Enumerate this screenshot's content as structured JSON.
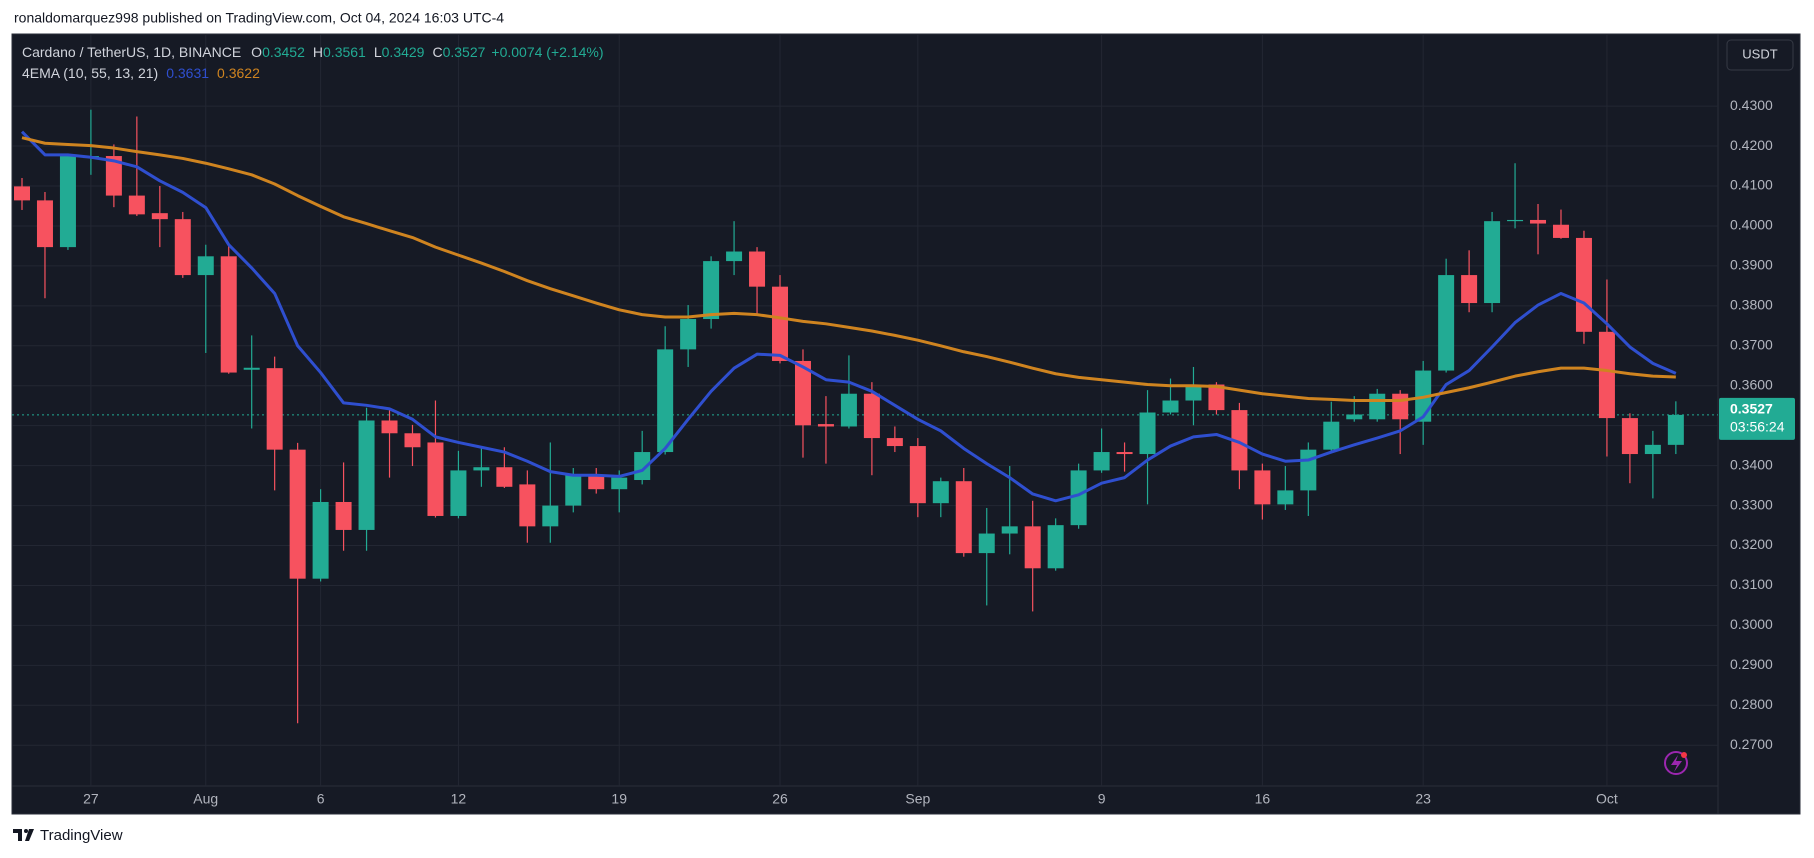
{
  "publisher": "ronaldomarquez998 published on TradingView.com, Oct 04, 2024 16:03 UTC-4",
  "footer": "TradingView",
  "chart_data": {
    "type": "candlestick",
    "symbol": "Cardano / TetherUS, 1D, BINANCE",
    "ohlc_keys": [
      "O",
      "H",
      "L",
      "C"
    ],
    "change": "+0.0074 (+2.14%)",
    "indicator": "4EMA (10, 55, 13, 21)",
    "currency": "USDT",
    "countdown": "03:56:24",
    "up_color": "#22ab94",
    "down_color": "#f7525f",
    "grid": true,
    "x": [
      "07-24",
      "07-25",
      "07-26",
      "07-27",
      "07-28",
      "07-29",
      "07-30",
      "07-31",
      "08-01",
      "08-02",
      "08-03",
      "08-04",
      "08-05",
      "08-06",
      "08-07",
      "08-08",
      "08-09",
      "08-10",
      "08-11",
      "08-12",
      "08-13",
      "08-14",
      "08-15",
      "08-16",
      "08-17",
      "08-18",
      "08-19",
      "08-20",
      "08-21",
      "08-22",
      "08-23",
      "08-24",
      "08-25",
      "08-26",
      "08-27",
      "08-28",
      "08-29",
      "08-30",
      "08-31",
      "09-01",
      "09-02",
      "09-03",
      "09-04",
      "09-05",
      "09-06",
      "09-07",
      "09-08",
      "09-09",
      "09-10",
      "09-11",
      "09-12",
      "09-13",
      "09-14",
      "09-15",
      "09-16",
      "09-17",
      "09-18",
      "09-19",
      "09-20",
      "09-21",
      "09-22",
      "09-23",
      "09-24",
      "09-25",
      "09-26",
      "09-27",
      "09-28",
      "09-29",
      "09-30",
      "10-01",
      "10-02",
      "10-03",
      "10-04"
    ],
    "open": [
      0.4099,
      0.4064,
      0.3947,
      0.417,
      0.4175,
      0.4076,
      0.4032,
      0.4017,
      0.3877,
      0.3924,
      0.364,
      0.3644,
      0.344,
      0.3117,
      0.3309,
      0.3239,
      0.3513,
      0.3481,
      0.3458,
      0.3274,
      0.3388,
      0.3396,
      0.3353,
      0.3248,
      0.33,
      0.3376,
      0.3341,
      0.3364,
      0.3434,
      0.3691,
      0.3767,
      0.3912,
      0.3936,
      0.3848,
      0.3662,
      0.3504,
      0.3498,
      0.358,
      0.3469,
      0.3449,
      0.3306,
      0.3361,
      0.3181,
      0.323,
      0.3248,
      0.3143,
      0.3251,
      0.3388,
      0.3434,
      0.3429,
      0.3533,
      0.3563,
      0.3603,
      0.3539,
      0.3388,
      0.3303,
      0.3338,
      0.344,
      0.3516,
      0.3516,
      0.358,
      0.351,
      0.3638,
      0.3877,
      0.3807,
      0.4012,
      0.4015,
      0.4003,
      0.397,
      0.3735,
      0.3519,
      0.3429,
      0.3452
    ],
    "high": [
      0.412,
      0.4085,
      0.418,
      0.4291,
      0.4204,
      0.4274,
      0.41,
      0.4035,
      0.3953,
      0.3953,
      0.3726,
      0.3673,
      0.3457,
      0.3341,
      0.3408,
      0.3545,
      0.3545,
      0.3502,
      0.3563,
      0.3437,
      0.3446,
      0.3446,
      0.3388,
      0.3458,
      0.3394,
      0.3394,
      0.3388,
      0.3487,
      0.3749,
      0.3802,
      0.3924,
      0.4012,
      0.3947,
      0.3877,
      0.3691,
      0.3574,
      0.3676,
      0.3609,
      0.3498,
      0.3469,
      0.337,
      0.3394,
      0.3294,
      0.3399,
      0.3312,
      0.3268,
      0.3405,
      0.3493,
      0.3458,
      0.3589,
      0.3618,
      0.3647,
      0.3609,
      0.3557,
      0.3405,
      0.3399,
      0.3458,
      0.356,
      0.3574,
      0.3592,
      0.3589,
      0.3662,
      0.3918,
      0.3939,
      0.4035,
      0.4157,
      0.4055,
      0.4041,
      0.3988,
      0.3866,
      0.3531,
      0.3487,
      0.3561
    ],
    "low": [
      0.404,
      0.3819,
      0.394,
      0.4128,
      0.4047,
      0.4025,
      0.3947,
      0.387,
      0.3682,
      0.363,
      0.3493,
      0.3338,
      0.2755,
      0.311,
      0.3187,
      0.3187,
      0.337,
      0.3399,
      0.327,
      0.3268,
      0.3347,
      0.3344,
      0.3207,
      0.3207,
      0.3283,
      0.333,
      0.3283,
      0.3353,
      0.3428,
      0.3647,
      0.3743,
      0.3877,
      0.3778,
      0.3656,
      0.342,
      0.3405,
      0.3493,
      0.3376,
      0.3434,
      0.3271,
      0.3271,
      0.3172,
      0.305,
      0.3178,
      0.3035,
      0.3137,
      0.3242,
      0.3382,
      0.3385,
      0.3303,
      0.3528,
      0.3501,
      0.3528,
      0.3341,
      0.3265,
      0.3289,
      0.3274,
      0.3434,
      0.351,
      0.351,
      0.3429,
      0.3452,
      0.3633,
      0.3784,
      0.3784,
      0.3994,
      0.3929,
      0.3968,
      0.3705,
      0.3423,
      0.3356,
      0.3318,
      0.3429
    ],
    "close": [
      0.4064,
      0.3947,
      0.4175,
      0.4175,
      0.4076,
      0.4029,
      0.4017,
      0.3877,
      0.3924,
      0.3633,
      0.3645,
      0.344,
      0.3117,
      0.3309,
      0.3239,
      0.3513,
      0.3481,
      0.3446,
      0.3274,
      0.3388,
      0.3396,
      0.3347,
      0.3248,
      0.33,
      0.3376,
      0.3341,
      0.337,
      0.3434,
      0.3691,
      0.3767,
      0.3912,
      0.3936,
      0.3848,
      0.3662,
      0.3501,
      0.3498,
      0.358,
      0.3469,
      0.3449,
      0.3306,
      0.3361,
      0.3181,
      0.323,
      0.3248,
      0.3143,
      0.3251,
      0.3388,
      0.3434,
      0.3429,
      0.3533,
      0.3563,
      0.3603,
      0.3539,
      0.3388,
      0.3303,
      0.3338,
      0.344,
      0.351,
      0.3528,
      0.358,
      0.3516,
      0.3638,
      0.3877,
      0.3807,
      0.4012,
      0.4015,
      0.4006,
      0.397,
      0.3735,
      0.3519,
      0.3429,
      0.3452,
      0.3527
    ],
    "series": [
      {
        "color": "#2f4fcf",
        "values": [
          0.4236,
          0.4178,
          0.4178,
          0.4172,
          0.4163,
          0.4148,
          0.4113,
          0.4084,
          0.4046,
          0.3953,
          0.3895,
          0.3831,
          0.37,
          0.3633,
          0.3557,
          0.3551,
          0.3542,
          0.3516,
          0.3472,
          0.3458,
          0.3446,
          0.3434,
          0.3411,
          0.3385,
          0.3376,
          0.3376,
          0.3373,
          0.3388,
          0.3443,
          0.3516,
          0.3586,
          0.3644,
          0.3679,
          0.3676,
          0.3647,
          0.3615,
          0.3609,
          0.3586,
          0.3551,
          0.3516,
          0.3487,
          0.3443,
          0.3405,
          0.337,
          0.3329,
          0.3312,
          0.3327,
          0.3356,
          0.337,
          0.3414,
          0.3449,
          0.3472,
          0.3478,
          0.3458,
          0.3429,
          0.3411,
          0.3414,
          0.3434,
          0.3452,
          0.3469,
          0.3487,
          0.3522,
          0.3603,
          0.3638,
          0.3697,
          0.3758,
          0.3802,
          0.3831,
          0.3807,
          0.3755,
          0.3697,
          0.3656,
          0.3631
        ]
      },
      {
        "color": "#cf8420",
        "values": [
          0.4221,
          0.4207,
          0.4204,
          0.4201,
          0.4195,
          0.4186,
          0.4178,
          0.4169,
          0.4157,
          0.4143,
          0.4128,
          0.4105,
          0.4076,
          0.4049,
          0.4023,
          0.4006,
          0.3988,
          0.3971,
          0.3947,
          0.3927,
          0.3907,
          0.3886,
          0.3863,
          0.3843,
          0.3825,
          0.3807,
          0.379,
          0.3778,
          0.3772,
          0.3772,
          0.3778,
          0.3781,
          0.3778,
          0.377,
          0.3761,
          0.3755,
          0.3746,
          0.3737,
          0.3726,
          0.3714,
          0.37,
          0.3685,
          0.3673,
          0.3659,
          0.3644,
          0.363,
          0.3621,
          0.3615,
          0.3609,
          0.3603,
          0.36,
          0.36,
          0.3598,
          0.3589,
          0.358,
          0.3574,
          0.3568,
          0.3566,
          0.3563,
          0.3563,
          0.3563,
          0.3571,
          0.3583,
          0.3595,
          0.3609,
          0.3624,
          0.3635,
          0.3644,
          0.3644,
          0.3638,
          0.363,
          0.3624,
          0.3622
        ]
      }
    ],
    "ylim": [
      0.2598,
      0.4478
    ],
    "yticks": [
      {
        "value": 0.27,
        "label": "0.2700"
      },
      {
        "value": 0.28,
        "label": "0.2800"
      },
      {
        "value": 0.29,
        "label": "0.2900"
      },
      {
        "value": 0.3,
        "label": "0.3000"
      },
      {
        "value": 0.31,
        "label": "0.3100"
      },
      {
        "value": 0.32,
        "label": "0.3200"
      },
      {
        "value": 0.33,
        "label": "0.3300"
      },
      {
        "value": 0.34,
        "label": "0.3400"
      },
      {
        "value": 0.35,
        "label": "0.3500"
      },
      {
        "value": 0.36,
        "label": "0.3600"
      },
      {
        "value": 0.37,
        "label": "0.3700"
      },
      {
        "value": 0.38,
        "label": "0.3800"
      },
      {
        "value": 0.39,
        "label": "0.3900"
      },
      {
        "value": 0.4,
        "label": "0.4000"
      },
      {
        "value": 0.41,
        "label": "0.4100"
      },
      {
        "value": 0.42,
        "label": "0.4200"
      },
      {
        "value": 0.43,
        "label": "0.4300"
      }
    ],
    "xticks": [
      {
        "value": "07-27",
        "label": "27"
      },
      {
        "value": "08-01",
        "label": "Aug"
      },
      {
        "value": "08-06",
        "label": "6"
      },
      {
        "value": "08-12",
        "label": "12"
      },
      {
        "value": "08-19",
        "label": "19"
      },
      {
        "value": "08-26",
        "label": "26"
      },
      {
        "value": "09-01",
        "label": "Sep"
      },
      {
        "value": "09-09",
        "label": "9"
      },
      {
        "value": "09-16",
        "label": "16"
      },
      {
        "value": "09-23",
        "label": "23"
      },
      {
        "value": "10-01",
        "label": "Oct"
      }
    ]
  }
}
